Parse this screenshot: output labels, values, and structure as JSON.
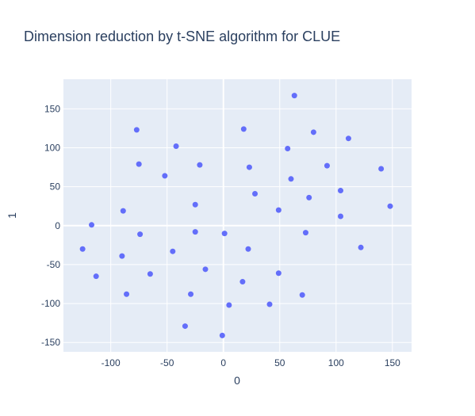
{
  "chart_data": {
    "type": "scatter",
    "title": "Dimension reduction by t-SNE algorithm for CLUE",
    "xlabel": "0",
    "ylabel": "1",
    "xlim": [
      -142,
      167
    ],
    "ylim": [
      -162,
      188
    ],
    "xticks": [
      -100,
      -50,
      0,
      50,
      100,
      150
    ],
    "yticks": [
      -150,
      -100,
      -50,
      0,
      50,
      100,
      150
    ],
    "grid": true,
    "legend": "none",
    "colors": {
      "marker": "#636efa",
      "plot_bg": "#e5ecf6",
      "grid": "#ffffff",
      "text": "#2a3f5f"
    },
    "points": [
      {
        "x": 63,
        "y": 167
      },
      {
        "x": -77,
        "y": 123
      },
      {
        "x": 18,
        "y": 124
      },
      {
        "x": 80,
        "y": 120
      },
      {
        "x": 111,
        "y": 112
      },
      {
        "x": -42,
        "y": 102
      },
      {
        "x": 57,
        "y": 99
      },
      {
        "x": -75,
        "y": 79
      },
      {
        "x": -21,
        "y": 78
      },
      {
        "x": 23,
        "y": 75
      },
      {
        "x": 92,
        "y": 77
      },
      {
        "x": 140,
        "y": 73
      },
      {
        "x": -52,
        "y": 64
      },
      {
        "x": 60,
        "y": 60
      },
      {
        "x": 104,
        "y": 45
      },
      {
        "x": 28,
        "y": 41
      },
      {
        "x": 76,
        "y": 36
      },
      {
        "x": -25,
        "y": 27
      },
      {
        "x": 148,
        "y": 25
      },
      {
        "x": -89,
        "y": 19
      },
      {
        "x": 49,
        "y": 20
      },
      {
        "x": 104,
        "y": 12
      },
      {
        "x": -117,
        "y": 1
      },
      {
        "x": -74,
        "y": -11
      },
      {
        "x": -25,
        "y": -8
      },
      {
        "x": 1,
        "y": -10
      },
      {
        "x": 73,
        "y": -9
      },
      {
        "x": -125,
        "y": -30
      },
      {
        "x": 22,
        "y": -30
      },
      {
        "x": 122,
        "y": -28
      },
      {
        "x": -90,
        "y": -39
      },
      {
        "x": -45,
        "y": -33
      },
      {
        "x": -16,
        "y": -56
      },
      {
        "x": -113,
        "y": -65
      },
      {
        "x": -65,
        "y": -62
      },
      {
        "x": 49,
        "y": -61
      },
      {
        "x": 17,
        "y": -72
      },
      {
        "x": -86,
        "y": -88
      },
      {
        "x": -29,
        "y": -88
      },
      {
        "x": 70,
        "y": -89
      },
      {
        "x": 5,
        "y": -102
      },
      {
        "x": 41,
        "y": -101
      },
      {
        "x": -34,
        "y": -129
      },
      {
        "x": -1,
        "y": -141
      }
    ]
  }
}
